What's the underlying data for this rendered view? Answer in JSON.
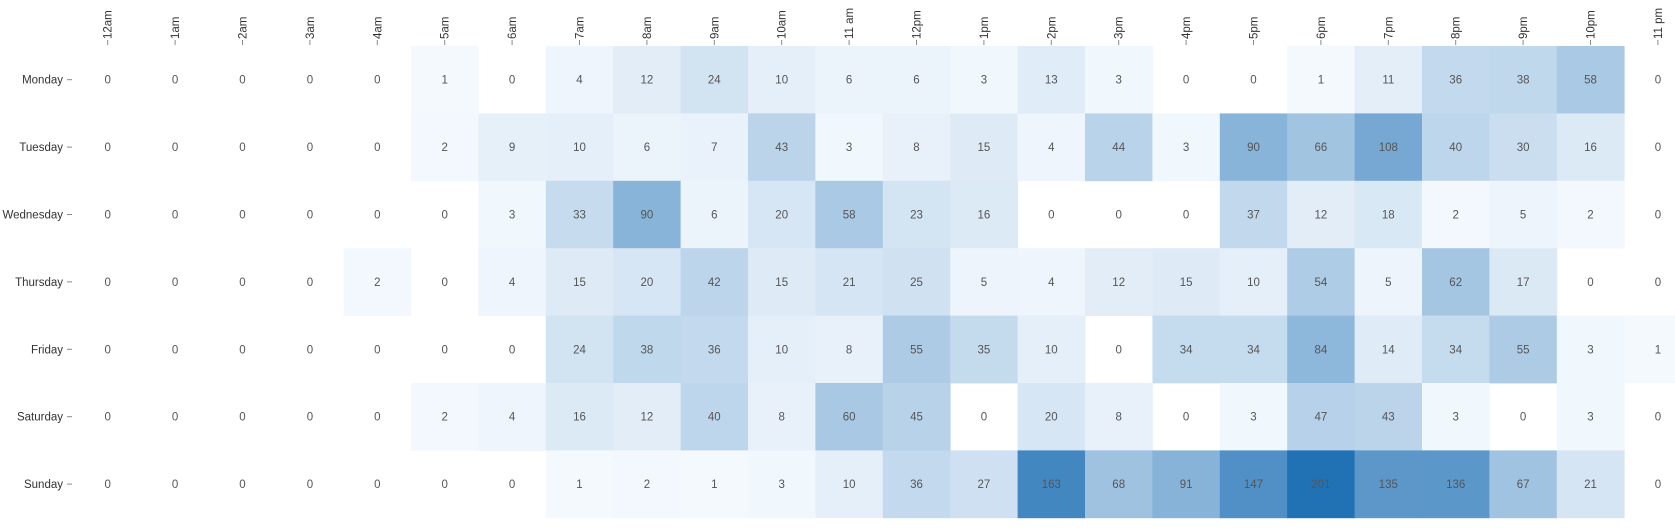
{
  "chart_data": {
    "type": "heatmap",
    "title": "",
    "xlabel": "",
    "ylabel": "",
    "colors": {
      "low": "#f7fbff",
      "high": "#2171b5",
      "text": "#555555",
      "axis_text": "#333333",
      "tick": "#888888"
    },
    "grid": false,
    "legend": "none",
    "x_labels": [
      "12am",
      "1am",
      "2am",
      "3am",
      "4am",
      "5am",
      "6am",
      "7am",
      "8am",
      "9am",
      "10am",
      "11 am",
      "12pm",
      "1pm",
      "2pm",
      "3pm",
      "4pm",
      "5pm",
      "6pm",
      "7pm",
      "8pm",
      "9pm",
      "10pm",
      "11 pm"
    ],
    "y_labels": [
      "Monday",
      "Tuesday",
      "Wednesday",
      "Thursday",
      "Friday",
      "Saturday",
      "Sunday"
    ],
    "values": [
      [
        0,
        0,
        0,
        0,
        0,
        1,
        0,
        4,
        12,
        24,
        10,
        6,
        6,
        3,
        13,
        3,
        0,
        0,
        1,
        11,
        36,
        38,
        58,
        0
      ],
      [
        0,
        0,
        0,
        0,
        0,
        2,
        9,
        10,
        6,
        7,
        43,
        3,
        8,
        15,
        4,
        44,
        3,
        90,
        66,
        108,
        40,
        30,
        16,
        0
      ],
      [
        0,
        0,
        0,
        0,
        0,
        0,
        3,
        33,
        90,
        6,
        20,
        58,
        23,
        16,
        0,
        0,
        0,
        37,
        12,
        18,
        2,
        5,
        2,
        0
      ],
      [
        0,
        0,
        0,
        0,
        2,
        0,
        4,
        15,
        20,
        42,
        15,
        21,
        25,
        5,
        4,
        12,
        15,
        10,
        54,
        5,
        62,
        17,
        0,
        0
      ],
      [
        0,
        0,
        0,
        0,
        0,
        0,
        0,
        24,
        38,
        36,
        10,
        8,
        55,
        35,
        10,
        0,
        34,
        34,
        84,
        14,
        34,
        55,
        3,
        1
      ],
      [
        0,
        0,
        0,
        0,
        0,
        2,
        4,
        16,
        12,
        40,
        8,
        60,
        45,
        0,
        20,
        8,
        0,
        3,
        47,
        43,
        3,
        0,
        3,
        0
      ],
      [
        0,
        0,
        0,
        0,
        0,
        0,
        0,
        1,
        2,
        1,
        3,
        10,
        36,
        27,
        163,
        68,
        91,
        147,
        201,
        135,
        136,
        67,
        21,
        0
      ]
    ]
  }
}
